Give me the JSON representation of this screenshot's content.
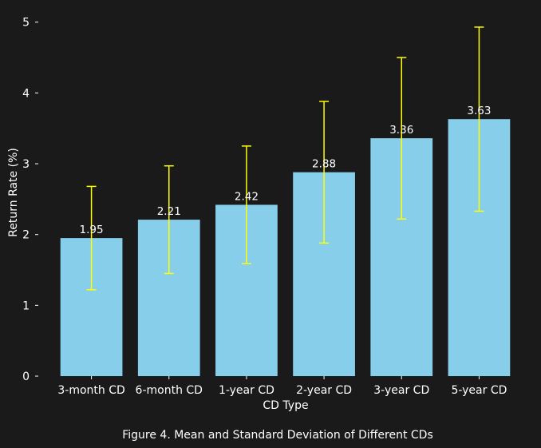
{
  "chart_data": {
    "type": "bar",
    "categories": [
      "3-month CD",
      "6-month CD",
      "1-year CD",
      "2-year CD",
      "3-year CD",
      "5-year CD"
    ],
    "values": [
      1.95,
      2.21,
      2.42,
      2.88,
      3.36,
      3.63
    ],
    "errors": [
      0.73,
      0.76,
      0.83,
      1.0,
      1.14,
      1.3
    ],
    "data_labels": [
      "1.95",
      "2.21",
      "2.42",
      "2.88",
      "3.36",
      "3.63"
    ],
    "xlabel": "CD Type",
    "ylabel": "Return Rate (%)",
    "ylim": [
      0,
      5.2
    ],
    "yticks": [
      0,
      1,
      2,
      3,
      4,
      5
    ],
    "grid": false,
    "bar_color": "#87ceeb",
    "error_color": "#ffff00",
    "background": "#1a1a1a"
  },
  "caption": "Figure 4. Mean and Standard Deviation of Different CDs"
}
